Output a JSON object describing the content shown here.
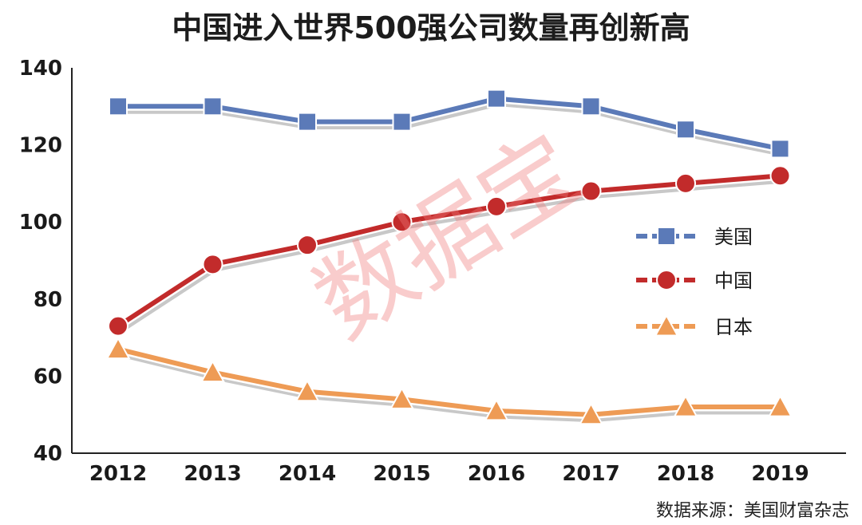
{
  "chart_data": {
    "type": "line",
    "title": "中国进入世界500强公司数量再创新高",
    "categories": [
      "2012",
      "2013",
      "2014",
      "2015",
      "2016",
      "2017",
      "2018",
      "2019"
    ],
    "yticks": [
      "140",
      "120",
      "100",
      "80",
      "60",
      "40"
    ],
    "ylim": [
      40,
      140
    ],
    "grid": false,
    "legend_position": "right",
    "series": [
      {
        "name": "美国",
        "values": [
          130,
          130,
          126,
          126,
          132,
          130,
          124,
          119
        ],
        "color": "#5b7ab8",
        "marker": "square"
      },
      {
        "name": "中国",
        "values": [
          73,
          89,
          94,
          100,
          104,
          108,
          110,
          112
        ],
        "color": "#c22b2b",
        "marker": "circle"
      },
      {
        "name": "日本",
        "values": [
          67,
          61,
          56,
          54,
          51,
          50,
          52,
          52
        ],
        "color": "#ee9b55",
        "marker": "triangle"
      }
    ]
  },
  "source": "数据来源：美国财富杂志",
  "watermark": "数据宝"
}
